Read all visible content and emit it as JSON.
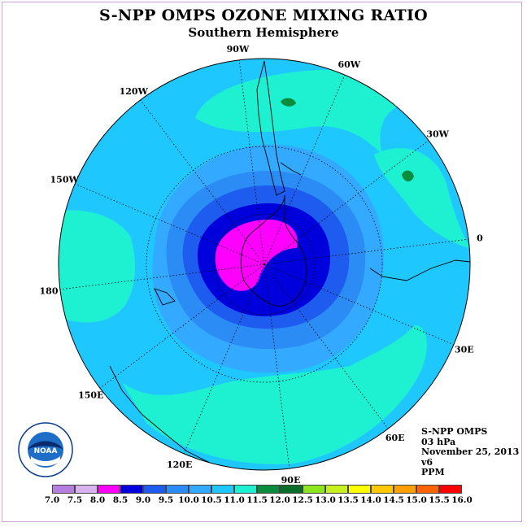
{
  "title": "S-NPP OMPS OZONE MIXING RATIO",
  "subtitle": "Southern Hemisphere",
  "info": {
    "instrument": "S-NPP OMPS",
    "level": "03 hPa",
    "date": "November 25, 2013",
    "version": "v6",
    "units": "PPM"
  },
  "longitude_labels": [
    {
      "text": "90W",
      "angle": -90
    },
    {
      "text": "60W",
      "angle": -60
    },
    {
      "text": "30W",
      "angle": -30
    },
    {
      "text": "0",
      "angle": 0
    },
    {
      "text": "30E",
      "angle": 30
    },
    {
      "text": "60E",
      "angle": 60
    },
    {
      "text": "90E",
      "angle": 90
    },
    {
      "text": "120E",
      "angle": 120
    },
    {
      "text": "150E",
      "angle": 150
    },
    {
      "text": "180",
      "angle": 180
    },
    {
      "text": "150W",
      "angle": -150
    },
    {
      "text": "120W",
      "angle": -120
    }
  ],
  "colorbar": {
    "ticks": [
      "7.0",
      "7.5",
      "8.0",
      "8.5",
      "9.0",
      "9.5",
      "10.0",
      "10.5",
      "11.0",
      "11.5",
      "12.0",
      "12.5",
      "13.0",
      "13.5",
      "14.0",
      "14.5",
      "15.0",
      "15.5",
      "16.0"
    ],
    "colors": [
      "#b57fe0",
      "#d9b3f0",
      "#ff00ff",
      "#0000dd",
      "#1e5cf0",
      "#2b8cf5",
      "#33aaff",
      "#1ec8ff",
      "#1ef0d2",
      "#0a8c3c",
      "#0a6e2a",
      "#8ce61e",
      "#c8f01e",
      "#ffff00",
      "#ffc800",
      "#ffa000",
      "#ff6400",
      "#ff0000",
      "#8b5a3c"
    ]
  },
  "logo_text": "NOAA",
  "colors": {
    "ocean_base": "#1ec8ff",
    "band_light": "#1ef0d2",
    "ring_10": "#33aaff",
    "ring_95": "#2b8cf5",
    "ring_9": "#1e5cf0",
    "ring_85": "#0000dd",
    "core": "#ff00ff",
    "green_spot": "#0a8c3c"
  }
}
